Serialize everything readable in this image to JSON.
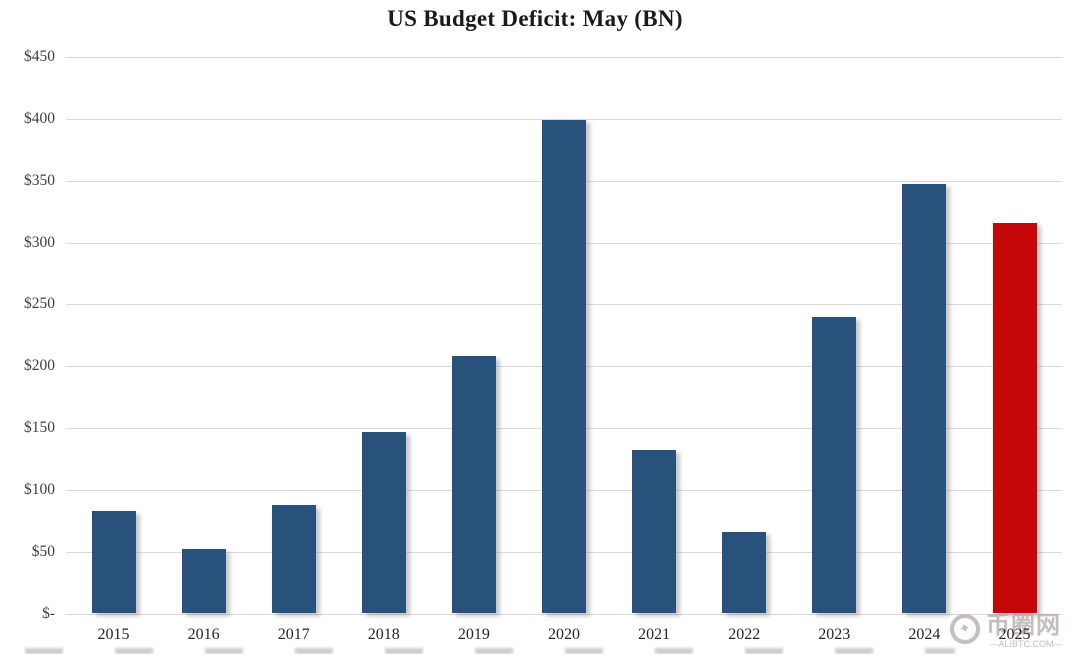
{
  "chart_data": {
    "type": "bar",
    "title": "US Budget Deficit: May (BN)",
    "categories": [
      "2015",
      "2016",
      "2017",
      "2018",
      "2019",
      "2020",
      "2021",
      "2022",
      "2023",
      "2024",
      "2025"
    ],
    "values": [
      83,
      52,
      88,
      147,
      208,
      399,
      132,
      66,
      240,
      347,
      316
    ],
    "xlabel": "",
    "ylabel": "",
    "ylim": [
      0,
      450
    ],
    "ytick_step": 50,
    "ytick_labels": [
      "$-",
      "$50",
      "$100",
      "$150",
      "$200",
      "$250",
      "$300",
      "$350",
      "$400",
      "$450"
    ],
    "grid": true,
    "legend": false,
    "highlight_index": 10
  },
  "colors": {
    "bar": "#28517C",
    "highlight": "#C40707",
    "gridline": "#D9D9D9",
    "title": "#1A1A1A",
    "tick": "#3F3F3F",
    "background": "#FFFFFF",
    "watermark": "#B3A7A7"
  },
  "watermark": {
    "logo_icon": "✦",
    "logo_text": "币圈网",
    "site": "—ALIBTC.COM—"
  }
}
